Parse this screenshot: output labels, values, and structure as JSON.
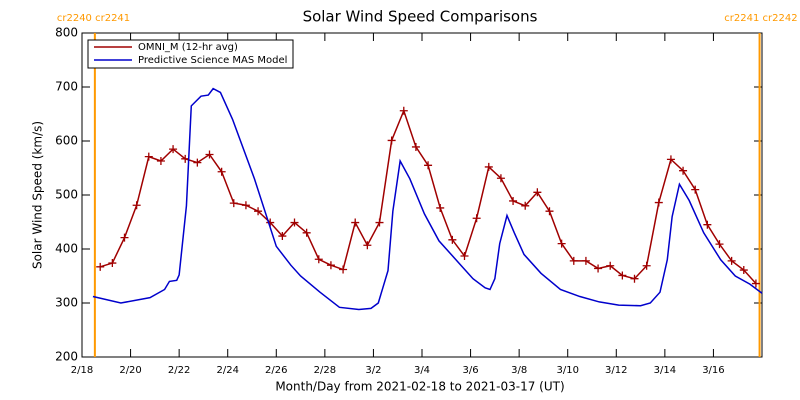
{
  "chart_data": {
    "type": "line",
    "title": "Solar Wind Speed Comparisons",
    "xlabel": "Month/Day from 2021-02-18 to 2021-03-17 (UT)",
    "ylabel": "Solar Wind Speed (km/s)",
    "xlim": [
      0,
      28
    ],
    "ylim": [
      200,
      800
    ],
    "xticks": [
      {
        "value": 0,
        "label": "2/18"
      },
      {
        "value": 2,
        "label": "2/20"
      },
      {
        "value": 4,
        "label": "2/22"
      },
      {
        "value": 6,
        "label": "2/24"
      },
      {
        "value": 8,
        "label": "2/26"
      },
      {
        "value": 10,
        "label": "2/28"
      },
      {
        "value": 12,
        "label": "3/2"
      },
      {
        "value": 14,
        "label": "3/4"
      },
      {
        "value": 16,
        "label": "3/6"
      },
      {
        "value": 18,
        "label": "3/8"
      },
      {
        "value": 20,
        "label": "3/10"
      },
      {
        "value": 22,
        "label": "3/12"
      },
      {
        "value": 24,
        "label": "3/14"
      },
      {
        "value": 26,
        "label": "3/16"
      }
    ],
    "yticks": [
      200,
      300,
      400,
      500,
      600,
      700,
      800
    ],
    "legend": "upper left",
    "annotations": [
      {
        "text": "cr2240 cr2241",
        "x": 0.53,
        "color": "#ff9900"
      },
      {
        "text": "cr2241 cr2242",
        "x": 27.9,
        "color": "#ff9900"
      }
    ],
    "series": [
      {
        "name": "OMNI_M (12-hr avg)",
        "color": "#a00000",
        "marker": "+",
        "x": [
          0.75,
          1.25,
          1.75,
          2.25,
          2.75,
          3.25,
          3.75,
          4.25,
          4.75,
          5.25,
          5.75,
          6.25,
          6.75,
          7.25,
          7.75,
          8.25,
          8.75,
          9.25,
          9.75,
          10.25,
          10.75,
          11.25,
          11.75,
          12.25,
          12.75,
          13.25,
          13.75,
          14.25,
          14.75,
          15.25,
          15.75,
          16.25,
          16.75,
          17.25,
          17.75,
          18.25,
          18.75,
          19.25,
          19.75,
          20.25,
          20.75,
          21.25,
          21.75,
          22.25,
          22.75,
          23.25,
          23.75,
          24.25,
          24.75,
          25.25,
          25.75,
          26.25,
          26.75,
          27.25,
          27.75
        ],
        "values": [
          367,
          374,
          421,
          481,
          571,
          563,
          585,
          567,
          560,
          575,
          543,
          485,
          481,
          470,
          449,
          424,
          449,
          430,
          381,
          370,
          362,
          449,
          407,
          449,
          601,
          656,
          589,
          555,
          476,
          417,
          387,
          457,
          552,
          531,
          489,
          480,
          505,
          470,
          410,
          378,
          378,
          364,
          369,
          351,
          345,
          369,
          486,
          566,
          545,
          510,
          445,
          409,
          378,
          361,
          336
        ]
      },
      {
        "name": "Predictive Science MAS Model",
        "color": "#0000cc",
        "x": [
          0.45,
          1.6,
          2.8,
          3.4,
          3.6,
          3.9,
          4.0,
          4.3,
          4.5,
          4.9,
          5.2,
          5.4,
          5.7,
          6.2,
          7.1,
          8.0,
          8.6,
          9.0,
          9.8,
          10.6,
          11.4,
          11.9,
          12.2,
          12.6,
          12.8,
          13.1,
          13.5,
          14.1,
          14.7,
          15.6,
          16.1,
          16.6,
          16.8,
          17.0,
          17.2,
          17.5,
          17.8,
          18.2,
          18.9,
          19.7,
          20.5,
          21.3,
          22.1,
          23.0,
          23.4,
          23.8,
          24.1,
          24.3,
          24.6,
          25.0,
          25.6,
          26.3,
          26.9,
          27.5,
          28.0
        ],
        "values": [
          312,
          300,
          310,
          325,
          340,
          342,
          352,
          480,
          665,
          683,
          685,
          697,
          690,
          640,
          530,
          405,
          370,
          350,
          320,
          292,
          288,
          290,
          300,
          360,
          470,
          563,
          530,
          465,
          415,
          370,
          345,
          328,
          325,
          345,
          410,
          462,
          430,
          390,
          355,
          325,
          312,
          302,
          296,
          295,
          300,
          320,
          380,
          460,
          520,
          490,
          430,
          380,
          350,
          335,
          318
        ]
      }
    ]
  }
}
